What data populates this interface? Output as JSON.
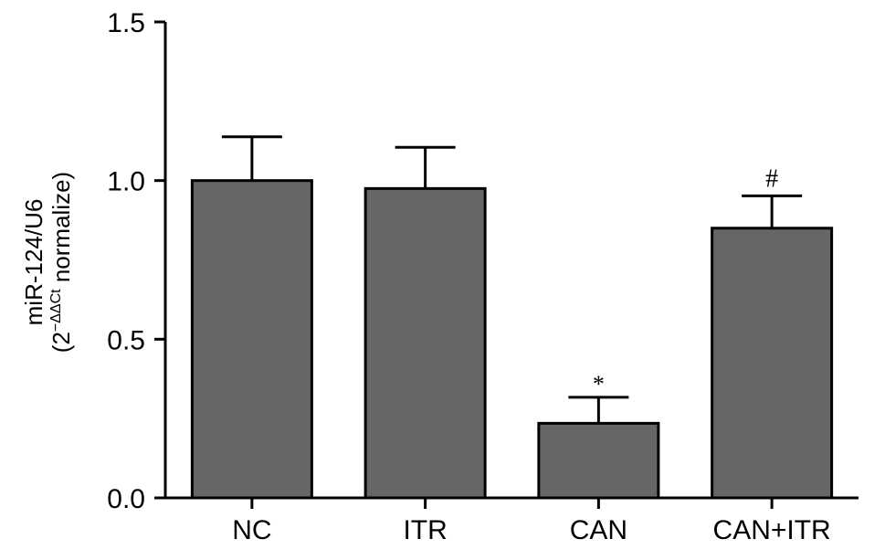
{
  "chart_data": {
    "type": "bar",
    "categories": [
      "NC",
      "ITR",
      "CAN",
      "CAN+ITR"
    ],
    "values": [
      1.0,
      0.975,
      0.235,
      0.85
    ],
    "errors": [
      0.138,
      0.13,
      0.082,
      0.102
    ],
    "annotations": [
      "",
      "",
      "*",
      "#"
    ],
    "ylabel_line1": "miR-124/U6",
    "ylabel_line2_prefix": "(2",
    "ylabel_line2_sup": "−ΔΔCt",
    "ylabel_line2_suffix": " normalize)",
    "yticks": [
      "0.0",
      "0.5",
      "1.0",
      "1.5"
    ],
    "ylim": [
      0,
      1.5
    ],
    "bar_color": "#666666",
    "grid": false
  }
}
